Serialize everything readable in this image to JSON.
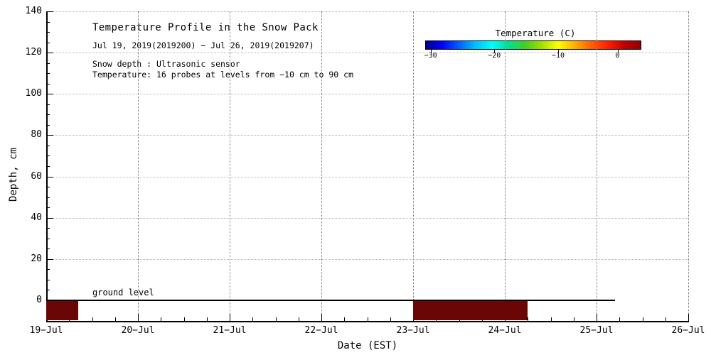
{
  "figure": {
    "title": "Temperature Profile in the Snow Pack",
    "subtitle": "Jul 19, 2019(2019200) − Jul 26, 2019(2019207)",
    "note_line1": "Snow depth : Ultrasonic sensor",
    "note_line2": "Temperature: 16 probes at levels from −10 cm to 90 cm",
    "ground_label": "ground level"
  },
  "colorbar": {
    "label": "Temperature (C)",
    "tick_labels": [
      "−30",
      "−20",
      "−10",
      "0"
    ],
    "tick_positions_pct": [
      2.5,
      32,
      61.5,
      89
    ],
    "range_c": [
      -30,
      3
    ],
    "gradient_colors": [
      "#00008b",
      "#0000ff",
      "#0060ff",
      "#00c0ff",
      "#00ffff",
      "#00e090",
      "#40d020",
      "#a0e000",
      "#ffff00",
      "#ffb000",
      "#ff6000",
      "#ff2000",
      "#c00000",
      "#900000"
    ]
  },
  "chart_data": {
    "type": "heatmap",
    "title": "Temperature Profile in the Snow Pack",
    "xlabel": "Date (EST)",
    "ylabel": "Depth, cm",
    "x_tick_labels": [
      "19−Jul",
      "20−Jul",
      "21−Jul",
      "22−Jul",
      "23−Jul",
      "24−Jul",
      "25−Jul",
      "26−Jul"
    ],
    "y_tick_values": [
      0,
      20,
      40,
      60,
      80,
      100,
      120,
      140
    ],
    "ylim_cm": [
      -10,
      140
    ],
    "xlim_days_from_jul19": [
      0,
      7
    ],
    "grid": "dotted vertical gridlines at each day; faint dotted horizontal gridlines every 20 cm",
    "legend_position": "colorbar top-right",
    "ground_level_line": {
      "depth_cm": 0,
      "x_start_day": 0.0,
      "x_end_day": 6.2
    },
    "below_ground_temperature_bands": [
      {
        "x_start_day": 0.0,
        "x_end_day": 0.35,
        "depth_from_cm": -10,
        "depth_to_cm": 0,
        "color": "#6a0606",
        "approx_temp_c": "≥0 (dark red, warm end of scale)"
      },
      {
        "x_start_day": 4.0,
        "x_end_day": 5.25,
        "depth_from_cm": -10,
        "depth_to_cm": 0,
        "color": "#6a0606",
        "approx_temp_c": "≥0 (dark red, warm end of scale)"
      }
    ],
    "snow_depth_series": []
  }
}
